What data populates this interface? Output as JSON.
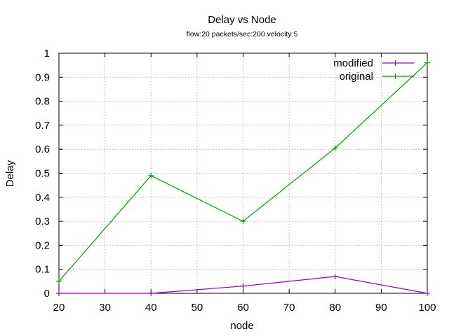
{
  "chart_data": {
    "type": "line",
    "title": "Delay vs Node",
    "subtitle": "flow:20  packets/sec:200  velocity:5",
    "xlabel": "node",
    "ylabel": "Delay",
    "xlim": [
      20,
      100
    ],
    "ylim": [
      0,
      1
    ],
    "xticks": [
      20,
      30,
      40,
      50,
      60,
      70,
      80,
      90,
      100
    ],
    "yticks": [
      0,
      0.1,
      0.2,
      0.3,
      0.4,
      0.5,
      0.6,
      0.7,
      0.8,
      0.9,
      1
    ],
    "grid": true,
    "legend_position": "top-right",
    "series": [
      {
        "name": "modified",
        "color": "#9400d3",
        "x": [
          20,
          40,
          60,
          80,
          100
        ],
        "y": [
          0.0,
          0.0,
          0.03,
          0.07,
          0.0
        ]
      },
      {
        "name": "original",
        "color": "#009e00",
        "x": [
          20,
          40,
          60,
          80,
          100
        ],
        "y": [
          0.05,
          0.49,
          0.3,
          0.605,
          0.96
        ]
      }
    ]
  }
}
